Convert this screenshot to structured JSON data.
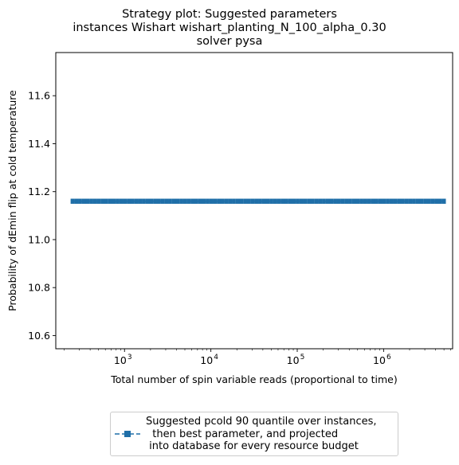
{
  "chart_data": {
    "type": "line",
    "title_lines": [
      "Strategy plot: Suggested parameters",
      "instances Wishart wishart_planting_N_100_alpha_0.30",
      "solver pysa"
    ],
    "xlabel": "Total number of spin variable reads (proportional to time)",
    "ylabel": "Probability of dEmin flip at cold temperature",
    "x_scale": "log",
    "xlim": [
      160,
      6300000
    ],
    "ylim": [
      10.545,
      11.78
    ],
    "x_major_ticks": [
      1000,
      10000,
      100000,
      1000000
    ],
    "x_tick_labels": [
      {
        "base": "10",
        "exp": "3"
      },
      {
        "base": "10",
        "exp": "4"
      },
      {
        "base": "10",
        "exp": "5"
      },
      {
        "base": "10",
        "exp": "6"
      }
    ],
    "y_ticks": [
      10.6,
      10.8,
      11.0,
      11.2,
      11.4,
      11.6
    ],
    "y_tick_labels": [
      "10.6",
      "10.8",
      "11.0",
      "11.2",
      "11.4",
      "11.6"
    ],
    "grid": false,
    "legend_position": "below plot, center",
    "series": [
      {
        "name": "Suggested pcold 90 quantile over instances,\n  then best parameter, and projected\n into database for every resource budget",
        "color": "#1f6fa8",
        "marker": "square",
        "x_start": 250,
        "x_end": 5000000,
        "n_points": 100,
        "y_constant": 11.16
      }
    ]
  }
}
